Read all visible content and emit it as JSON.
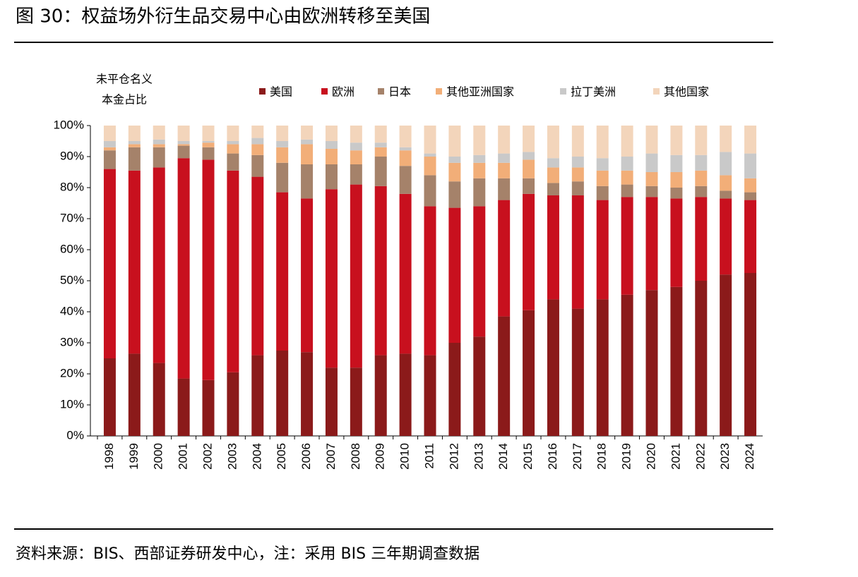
{
  "chart_data": {
    "type": "stacked_bar",
    "title": "图 30：权益场外衍生品交易中心由欧洲转移至美国",
    "y_label": [
      "未平仓名义",
      "本金占比"
    ],
    "source": "资料来源：BIS、西部证券研发中心，注：采用 BIS 三年期调查数据",
    "categories": [
      "1998",
      "1999",
      "2000",
      "2001",
      "2002",
      "2003",
      "2004",
      "2005",
      "2006",
      "2007",
      "2008",
      "2009",
      "2010",
      "2011",
      "2012",
      "2013",
      "2014",
      "2015",
      "2016",
      "2017",
      "2018",
      "2019",
      "2020",
      "2021",
      "2022",
      "2023",
      "2024"
    ],
    "series": [
      {
        "name": "美国",
        "color": "#8b1a1a",
        "values": [
          25,
          26.5,
          23.5,
          18.5,
          18,
          20.5,
          26,
          27.5,
          27,
          22,
          22,
          26,
          26.5,
          26,
          30,
          32,
          38.5,
          40.5,
          44,
          41,
          44,
          45.5,
          47,
          48,
          50,
          52,
          52.5
        ]
      },
      {
        "name": "欧洲",
        "color": "#c8101e",
        "values": [
          61,
          59,
          63,
          71,
          71,
          65,
          57.5,
          51,
          49.5,
          57.5,
          59,
          54.5,
          51.5,
          48,
          43.5,
          42,
          37.5,
          37.5,
          33.5,
          36.5,
          32,
          31.5,
          30,
          28.5,
          27,
          24.5,
          23.5
        ]
      },
      {
        "name": "日本",
        "color": "#a5826a",
        "values": [
          6,
          7.5,
          6.5,
          4,
          4,
          5.5,
          7,
          9.5,
          11,
          8,
          6.5,
          9.5,
          9,
          10,
          8.5,
          9,
          7,
          5,
          4,
          4.5,
          4.5,
          4,
          3.5,
          3.5,
          3.5,
          2.5,
          2.5
        ]
      },
      {
        "name": "其他亚洲国家",
        "color": "#f2ae78",
        "values": [
          1,
          1,
          1,
          0.5,
          1.5,
          3,
          3.5,
          5,
          6.5,
          5,
          4.5,
          3,
          5,
          6,
          6,
          5,
          5,
          6,
          5,
          4.5,
          5,
          4.5,
          4.5,
          5,
          5,
          5,
          4.5
        ]
      },
      {
        "name": "拉丁美洲",
        "color": "#c9c9c9",
        "values": [
          2,
          1,
          1.5,
          1,
          0.5,
          1,
          2,
          2,
          1.5,
          2.5,
          2.5,
          1.5,
          1,
          1,
          2,
          2.5,
          3,
          2.5,
          3,
          3.5,
          4,
          4.5,
          6,
          5.5,
          5,
          7.5,
          8
        ]
      },
      {
        "name": "其他国家",
        "color": "#f3d5bb",
        "values": [
          5,
          5,
          4.5,
          5,
          5,
          5,
          4,
          5,
          4.5,
          5,
          5.5,
          5.5,
          7,
          9,
          10,
          9.5,
          9,
          8.5,
          10.5,
          10,
          10.5,
          10,
          9,
          9.5,
          9.5,
          8.5,
          9
        ]
      }
    ],
    "ylim": [
      0,
      100
    ],
    "yticks": [
      {
        "value": 0,
        "label": "0%"
      },
      {
        "value": 10,
        "label": "10%"
      },
      {
        "value": 20,
        "label": "20%"
      },
      {
        "value": 30,
        "label": "30%"
      },
      {
        "value": 40,
        "label": "40%"
      },
      {
        "value": 50,
        "label": "50%"
      },
      {
        "value": 60,
        "label": "60%"
      },
      {
        "value": 70,
        "label": "70%"
      },
      {
        "value": 80,
        "label": "80%"
      },
      {
        "value": 90,
        "label": "90%"
      },
      {
        "value": 100,
        "label": "100%"
      }
    ],
    "grid": false
  }
}
